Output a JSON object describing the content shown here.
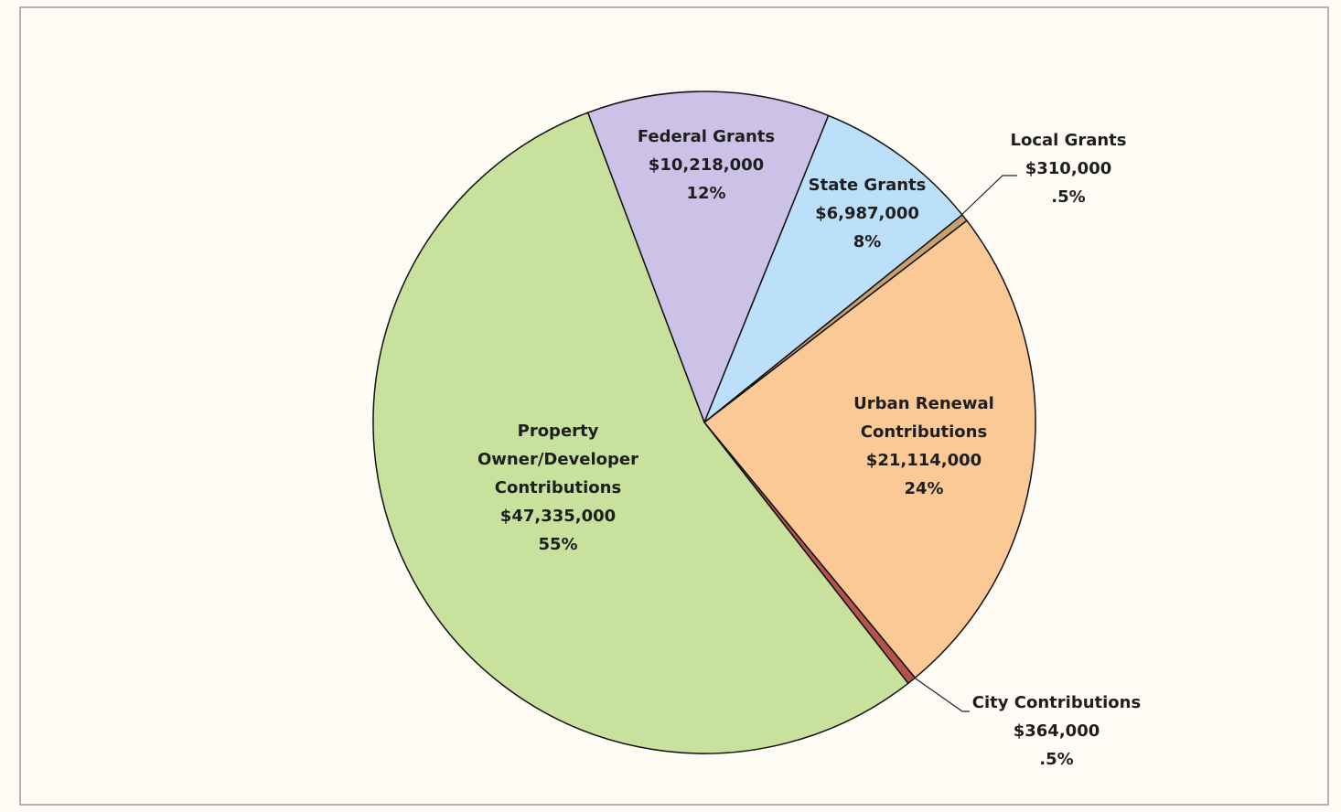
{
  "chart_data": {
    "type": "pie",
    "categories": [
      "Federal Grants",
      "State Grants",
      "Local Grants",
      "Urban Renewal Contributions",
      "City Contributions",
      "Property Owner/Developer Contributions"
    ],
    "values": [
      10218000,
      6987000,
      310000,
      21114000,
      364000,
      47335000
    ],
    "value_labels": [
      "$10,218,000",
      "$6,987,000",
      "$310,000",
      "$21,114,000",
      "$364,000",
      "$47,335,000"
    ],
    "percent_labels": [
      "12%",
      "8%",
      ".5%",
      "24%",
      ".5%",
      "55%"
    ],
    "colors": [
      "#ccc2e8",
      "#bde0fa",
      "#c8a06e",
      "#fbc996",
      "#b5524c",
      "#c8e19c"
    ]
  }
}
